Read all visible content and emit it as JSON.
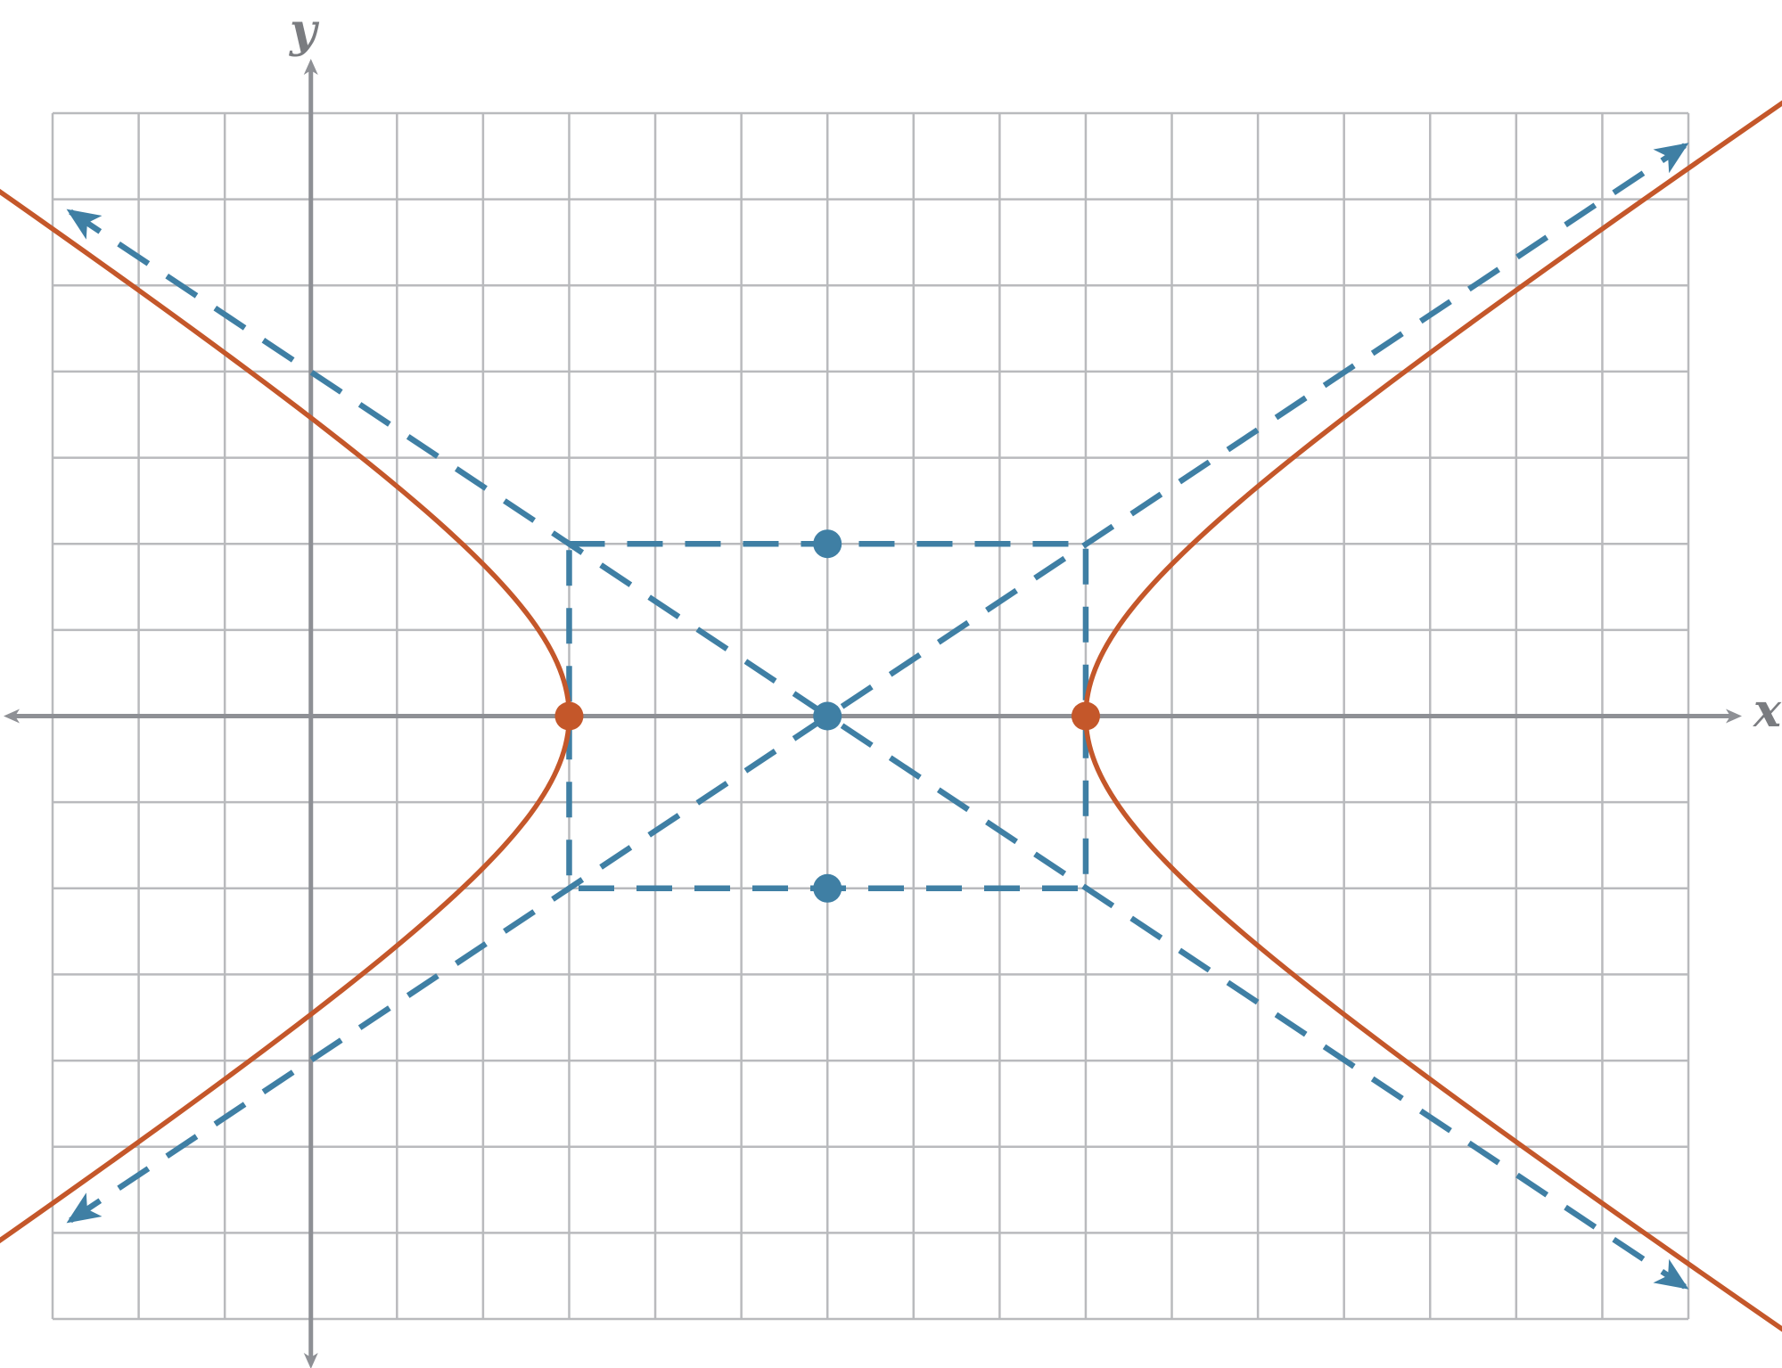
{
  "labels": {
    "x_axis": "x",
    "y_axis": "y"
  },
  "colors": {
    "grid": "#b9babd",
    "axis": "#8e9095",
    "hyperbola": "#c4572a",
    "guide": "#3f7fa4"
  },
  "chart_data": {
    "type": "diagram",
    "x_range": [
      -3,
      16
    ],
    "y_range": [
      -7,
      7
    ],
    "grid": true,
    "hyperbola": {
      "center": [
        6,
        0
      ],
      "a": 3,
      "b": 2,
      "orientation": "horizontal",
      "vertices": [
        [
          3,
          0
        ],
        [
          9,
          0
        ]
      ]
    },
    "points": [
      {
        "name": "center",
        "x": 6,
        "y": 0,
        "color": "guide"
      },
      {
        "name": "co-vertex-top",
        "x": 6,
        "y": 2,
        "color": "guide"
      },
      {
        "name": "co-vertex-bottom",
        "x": 6,
        "y": -2,
        "color": "guide"
      },
      {
        "name": "vertex-left",
        "x": 3,
        "y": 0,
        "color": "hyperbola"
      },
      {
        "name": "vertex-right",
        "x": 9,
        "y": 0,
        "color": "hyperbola"
      }
    ],
    "asymptotes": [
      {
        "slope": 0.6667,
        "intercept": -4
      },
      {
        "slope": -0.6667,
        "intercept": 4
      }
    ],
    "central_rectangle": {
      "x": [
        3,
        9
      ],
      "y": [
        -2,
        2
      ]
    }
  }
}
